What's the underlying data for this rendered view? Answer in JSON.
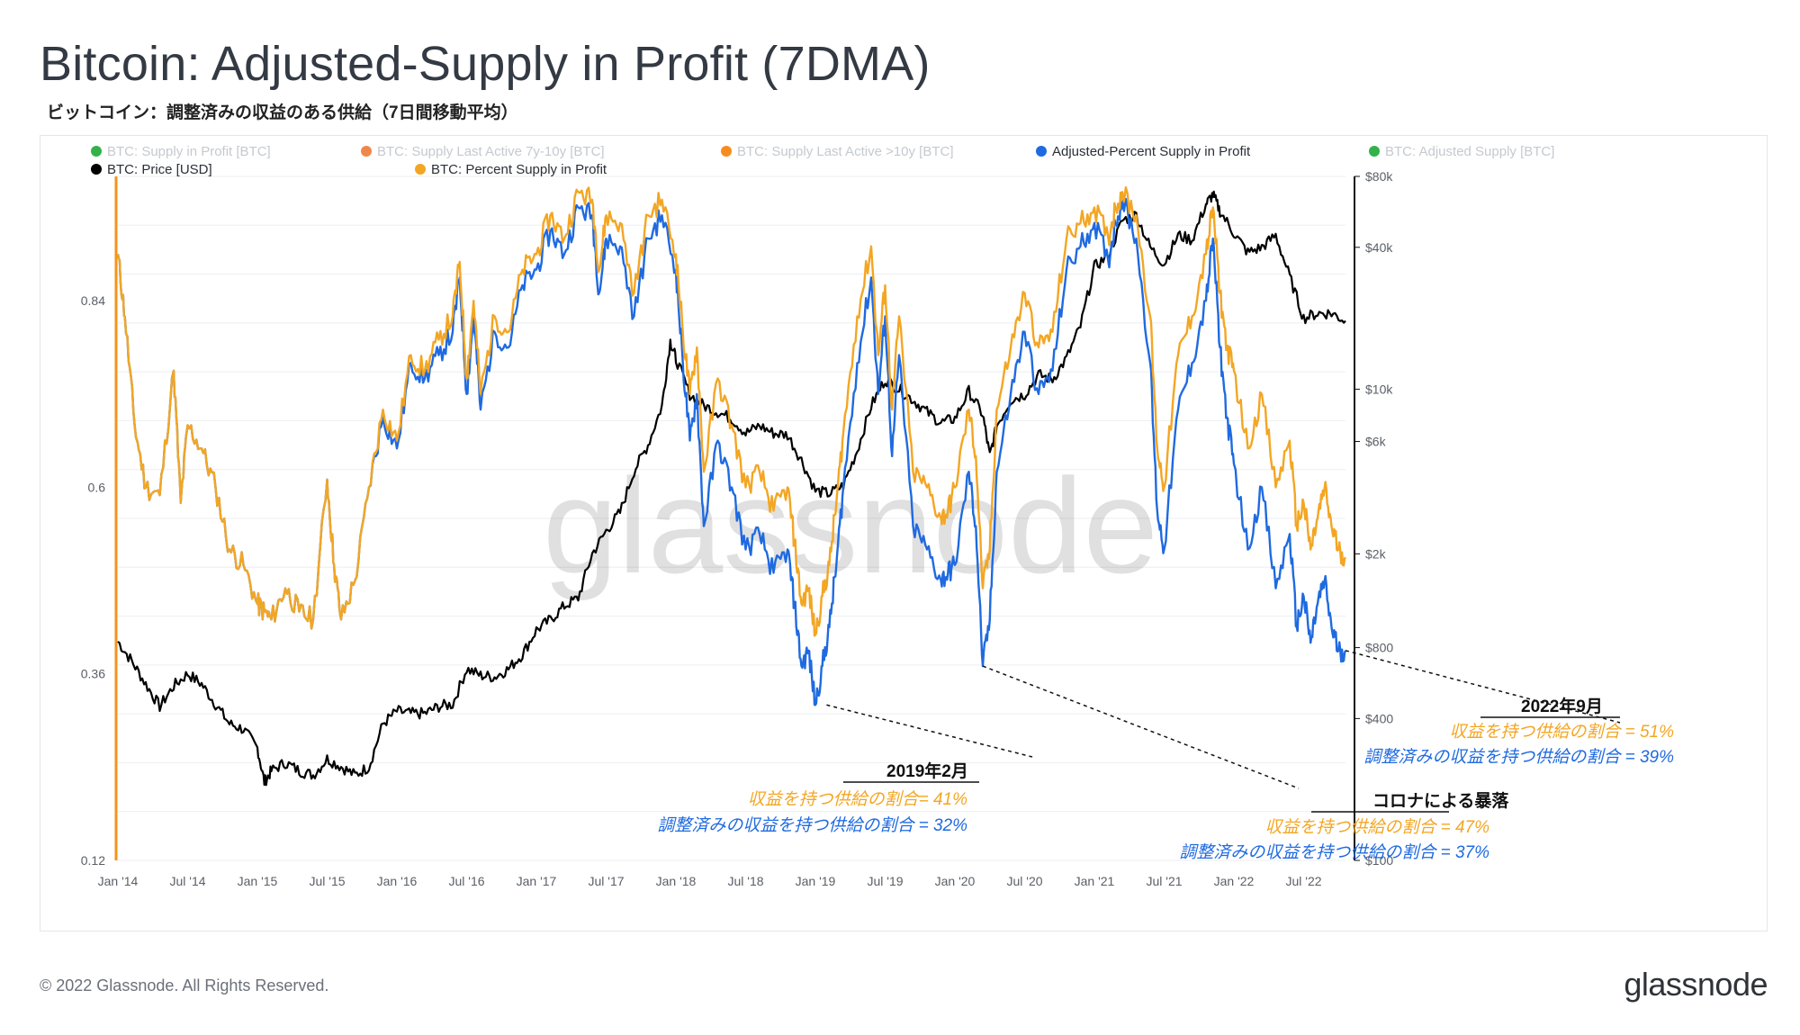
{
  "header": {
    "title": "Bitcoin: Adjusted-Supply in Profit (7DMA)",
    "subtitle": "ビットコイン：調整済みの収益のある供給（7日間移動平均）"
  },
  "footer": {
    "copyright": "© 2022 Glassnode. All Rights Reserved.",
    "logo": "glassnode"
  },
  "watermark": "glassnode",
  "colors": {
    "blue": "#1f6ae0",
    "orange": "#f3a623",
    "black": "#000000",
    "grid": "#eceef1",
    "axis": "#111111",
    "left_axis": "#f7931a"
  },
  "chart_data": {
    "type": "line",
    "legend": [
      {
        "name": "BTC: Supply in Profit [BTC]",
        "color": "#33b24a",
        "active": false
      },
      {
        "name": "BTC: Supply Last Active 7y-10y [BTC]",
        "color": "#f0874a",
        "active": false
      },
      {
        "name": "BTC: Supply Last Active >10y [BTC]",
        "color": "#f68c1f",
        "active": false
      },
      {
        "name": "Adjusted-Percent Supply in Profit",
        "color": "#1f6ae0",
        "active": true
      },
      {
        "name": "BTC: Adjusted Supply [BTC]",
        "color": "#33b24a",
        "active": false
      },
      {
        "name": "BTC: Price [USD]",
        "color": "#000000",
        "active": true
      },
      {
        "name": "BTC: Percent Supply in Profit",
        "color": "#f3a623",
        "active": true
      }
    ],
    "x_tick_labels": [
      "Jan '14",
      "Jul '14",
      "Jan '15",
      "Jul '15",
      "Jan '16",
      "Jul '16",
      "Jan '17",
      "Jul '17",
      "Jan '18",
      "Jul '18",
      "Jan '19",
      "Jul '19",
      "Jan '20",
      "Jul '20",
      "Jan '21",
      "Jul '21",
      "Jan '22",
      "Jul '22"
    ],
    "x_range": [
      2014.0,
      2022.8
    ],
    "y_left": {
      "ticks": [
        "0.12",
        "0.36",
        "0.6",
        "0.84"
      ],
      "ylim": [
        0.12,
        1.0
      ]
    },
    "y_right": {
      "scale": "log",
      "ticks": [
        "$100",
        "$400",
        "$800",
        "$2k",
        "$6k",
        "$10k",
        "$40k",
        "$80k"
      ],
      "values": [
        100,
        400,
        800,
        2000,
        6000,
        10000,
        40000,
        80000
      ],
      "ylim": [
        100,
        80000
      ]
    },
    "series": [
      {
        "name": "BTC: Percent Supply in Profit",
        "x": [
          2014.0,
          2014.05,
          2014.12,
          2014.2,
          2014.3,
          2014.4,
          2014.45,
          2014.5,
          2014.6,
          2014.7,
          2014.8,
          2014.9,
          2015.0,
          2015.05,
          2015.1,
          2015.2,
          2015.3,
          2015.4,
          2015.5,
          2015.55,
          2015.6,
          2015.7,
          2015.8,
          2015.9,
          2016.0,
          2016.1,
          2016.2,
          2016.3,
          2016.4,
          2016.45,
          2016.5,
          2016.55,
          2016.6,
          2016.7,
          2016.8,
          2016.9,
          2017.0,
          2017.1,
          2017.2,
          2017.3,
          2017.4,
          2017.45,
          2017.5,
          2017.6,
          2017.7,
          2017.8,
          2017.9,
          2018.0,
          2018.05,
          2018.1,
          2018.15,
          2018.2,
          2018.3,
          2018.4,
          2018.5,
          2018.6,
          2018.7,
          2018.8,
          2018.85,
          2018.9,
          2018.95,
          2019.0,
          2019.05,
          2019.1,
          2019.15,
          2019.2,
          2019.3,
          2019.4,
          2019.45,
          2019.5,
          2019.55,
          2019.6,
          2019.7,
          2019.8,
          2019.9,
          2019.95,
          2020.0,
          2020.1,
          2020.15,
          2020.2,
          2020.25,
          2020.3,
          2020.4,
          2020.5,
          2020.6,
          2020.7,
          2020.8,
          2020.9,
          2021.0,
          2021.1,
          2021.15,
          2021.2,
          2021.3,
          2021.4,
          2021.45,
          2021.5,
          2021.6,
          2021.7,
          2021.8,
          2021.85,
          2021.9,
          2021.95,
          2022.0,
          2022.1,
          2022.2,
          2022.3,
          2022.4,
          2022.45,
          2022.5,
          2022.55,
          2022.6,
          2022.65,
          2022.7,
          2022.75,
          2022.8
        ],
        "values": [
          0.9,
          0.82,
          0.68,
          0.6,
          0.59,
          0.75,
          0.58,
          0.68,
          0.65,
          0.6,
          0.52,
          0.5,
          0.45,
          0.44,
          0.43,
          0.47,
          0.44,
          0.43,
          0.61,
          0.5,
          0.43,
          0.48,
          0.6,
          0.7,
          0.66,
          0.77,
          0.75,
          0.79,
          0.82,
          0.89,
          0.74,
          0.84,
          0.72,
          0.82,
          0.8,
          0.88,
          0.9,
          0.95,
          0.92,
          0.98,
          0.97,
          0.88,
          0.95,
          0.94,
          0.85,
          0.95,
          0.97,
          0.9,
          0.8,
          0.72,
          0.78,
          0.62,
          0.74,
          0.68,
          0.6,
          0.62,
          0.57,
          0.6,
          0.53,
          0.45,
          0.47,
          0.41,
          0.46,
          0.5,
          0.58,
          0.67,
          0.82,
          0.91,
          0.77,
          0.86,
          0.7,
          0.82,
          0.62,
          0.6,
          0.56,
          0.57,
          0.6,
          0.7,
          0.64,
          0.47,
          0.52,
          0.7,
          0.78,
          0.85,
          0.78,
          0.8,
          0.92,
          0.94,
          0.96,
          0.92,
          0.96,
          0.98,
          0.95,
          0.82,
          0.65,
          0.6,
          0.77,
          0.82,
          0.9,
          0.96,
          0.85,
          0.78,
          0.75,
          0.65,
          0.72,
          0.6,
          0.66,
          0.55,
          0.58,
          0.52,
          0.56,
          0.6,
          0.55,
          0.52,
          0.51
        ]
      },
      {
        "name": "Adjusted-Percent Supply in Profit",
        "x": [
          2014.0,
          2014.05,
          2014.12,
          2014.2,
          2014.3,
          2014.4,
          2014.45,
          2014.5,
          2014.6,
          2014.7,
          2014.8,
          2014.9,
          2015.0,
          2015.05,
          2015.1,
          2015.2,
          2015.3,
          2015.4,
          2015.5,
          2015.55,
          2015.6,
          2015.7,
          2015.8,
          2015.9,
          2016.0,
          2016.1,
          2016.2,
          2016.3,
          2016.4,
          2016.45,
          2016.5,
          2016.55,
          2016.6,
          2016.7,
          2016.8,
          2016.9,
          2017.0,
          2017.1,
          2017.2,
          2017.3,
          2017.4,
          2017.45,
          2017.5,
          2017.6,
          2017.7,
          2017.8,
          2017.9,
          2018.0,
          2018.05,
          2018.1,
          2018.15,
          2018.2,
          2018.3,
          2018.4,
          2018.5,
          2018.6,
          2018.7,
          2018.8,
          2018.85,
          2018.9,
          2018.95,
          2019.0,
          2019.05,
          2019.1,
          2019.15,
          2019.2,
          2019.3,
          2019.4,
          2019.45,
          2019.5,
          2019.55,
          2019.6,
          2019.7,
          2019.8,
          2019.9,
          2019.95,
          2020.0,
          2020.1,
          2020.15,
          2020.2,
          2020.25,
          2020.3,
          2020.4,
          2020.5,
          2020.6,
          2020.7,
          2020.8,
          2020.9,
          2021.0,
          2021.1,
          2021.15,
          2021.2,
          2021.3,
          2021.4,
          2021.45,
          2021.5,
          2021.6,
          2021.7,
          2021.8,
          2021.85,
          2021.9,
          2021.95,
          2022.0,
          2022.1,
          2022.2,
          2022.3,
          2022.4,
          2022.45,
          2022.5,
          2022.55,
          2022.6,
          2022.65,
          2022.7,
          2022.75,
          2022.8
        ],
        "values": [
          0.9,
          0.82,
          0.68,
          0.6,
          0.59,
          0.75,
          0.58,
          0.68,
          0.65,
          0.6,
          0.52,
          0.5,
          0.45,
          0.44,
          0.43,
          0.47,
          0.44,
          0.43,
          0.61,
          0.5,
          0.43,
          0.48,
          0.6,
          0.69,
          0.65,
          0.76,
          0.74,
          0.77,
          0.8,
          0.87,
          0.72,
          0.82,
          0.7,
          0.8,
          0.78,
          0.86,
          0.88,
          0.93,
          0.9,
          0.96,
          0.95,
          0.85,
          0.92,
          0.91,
          0.82,
          0.92,
          0.95,
          0.88,
          0.76,
          0.66,
          0.72,
          0.55,
          0.66,
          0.6,
          0.52,
          0.54,
          0.49,
          0.52,
          0.45,
          0.37,
          0.39,
          0.32,
          0.37,
          0.42,
          0.5,
          0.6,
          0.76,
          0.87,
          0.72,
          0.82,
          0.64,
          0.77,
          0.55,
          0.52,
          0.48,
          0.49,
          0.5,
          0.62,
          0.55,
          0.37,
          0.43,
          0.62,
          0.72,
          0.8,
          0.72,
          0.75,
          0.88,
          0.91,
          0.94,
          0.89,
          0.94,
          0.97,
          0.92,
          0.76,
          0.57,
          0.52,
          0.7,
          0.76,
          0.84,
          0.92,
          0.78,
          0.69,
          0.63,
          0.52,
          0.6,
          0.47,
          0.54,
          0.42,
          0.46,
          0.4,
          0.45,
          0.48,
          0.42,
          0.39,
          0.39
        ]
      },
      {
        "name": "BTC: Price [USD]",
        "x": [
          2014.0,
          2014.1,
          2014.2,
          2014.3,
          2014.4,
          2014.5,
          2014.6,
          2014.7,
          2014.8,
          2014.9,
          2015.0,
          2015.05,
          2015.1,
          2015.2,
          2015.3,
          2015.4,
          2015.5,
          2015.6,
          2015.7,
          2015.8,
          2015.9,
          2016.0,
          2016.1,
          2016.2,
          2016.3,
          2016.4,
          2016.5,
          2016.6,
          2016.7,
          2016.8,
          2016.9,
          2017.0,
          2017.1,
          2017.2,
          2017.3,
          2017.4,
          2017.5,
          2017.6,
          2017.7,
          2017.8,
          2017.9,
          2017.96,
          2018.0,
          2018.1,
          2018.2,
          2018.3,
          2018.4,
          2018.5,
          2018.6,
          2018.7,
          2018.8,
          2018.9,
          2019.0,
          2019.1,
          2019.2,
          2019.3,
          2019.4,
          2019.5,
          2019.6,
          2019.7,
          2019.8,
          2019.9,
          2020.0,
          2020.1,
          2020.2,
          2020.25,
          2020.3,
          2020.4,
          2020.5,
          2020.6,
          2020.7,
          2020.8,
          2020.9,
          2021.0,
          2021.1,
          2021.2,
          2021.3,
          2021.4,
          2021.5,
          2021.6,
          2021.7,
          2021.8,
          2021.85,
          2021.9,
          2022.0,
          2022.1,
          2022.2,
          2022.3,
          2022.4,
          2022.5,
          2022.6,
          2022.7,
          2022.8
        ],
        "values": [
          850,
          700,
          560,
          450,
          550,
          620,
          560,
          460,
          380,
          360,
          300,
          215,
          240,
          260,
          240,
          230,
          270,
          250,
          230,
          250,
          380,
          430,
          420,
          420,
          450,
          460,
          650,
          610,
          600,
          650,
          750,
          950,
          1050,
          1200,
          1300,
          2000,
          2500,
          3000,
          4500,
          5800,
          8500,
          16000,
          13500,
          9500,
          8500,
          8000,
          7500,
          6500,
          7000,
          6500,
          6400,
          5000,
          3700,
          3600,
          3900,
          5500,
          8500,
          11000,
          10000,
          9000,
          8000,
          7200,
          7500,
          9800,
          7800,
          5200,
          7000,
          9000,
          9500,
          11500,
          11000,
          13500,
          18500,
          33000,
          37000,
          52000,
          55000,
          40000,
          34000,
          45000,
          43000,
          61000,
          67000,
          57000,
          46000,
          38000,
          40000,
          45000,
          30000,
          20000,
          21000,
          21000,
          19500
        ]
      }
    ],
    "annotations": [
      {
        "heading": "2019年2月",
        "line1": "収益を持つ供給の割合= 41%",
        "line2": "調整済みの収益を持つ供給の割合 = 32%",
        "x": 2019.08
      },
      {
        "heading": "コロナによる暴落",
        "line1": "収益を持つ供給の割合 = 47%",
        "line2": "調整済みの収益を持つ供給の割合 = 37%",
        "x": 2020.2
      },
      {
        "heading": "2022年9月",
        "line1": "収益を持つ供給の割合  = 51%",
        "line2": "調整済みの収益を持つ供給の割合 = 39%",
        "x": 2022.8
      }
    ]
  }
}
